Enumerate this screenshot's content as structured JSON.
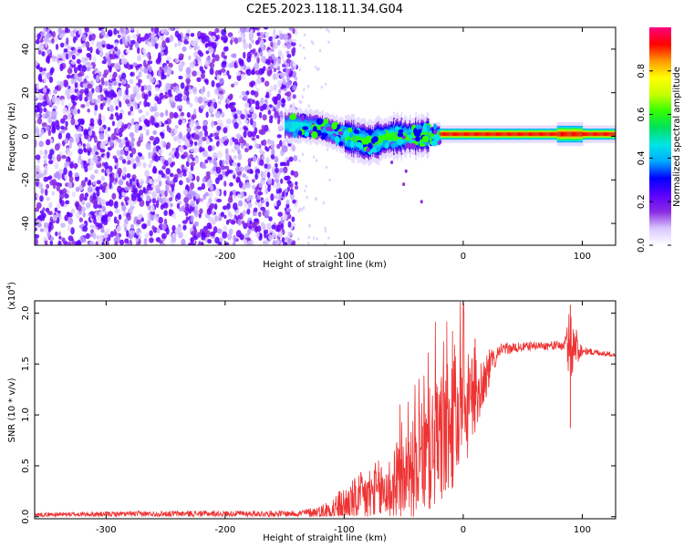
{
  "title": "C2E5.2023.118.11.34.G04",
  "chart_data": [
    {
      "type": "heatmap",
      "title": "C2E5.2023.118.11.34.G04",
      "xlabel": "Height of straight line (km)",
      "ylabel": "Frequency (Hz)",
      "xlim": [
        -360,
        128
      ],
      "ylim": [
        -50,
        50
      ],
      "x_ticks": [
        -300,
        -200,
        -100,
        0,
        100
      ],
      "x_tick_labels": [
        "-300",
        "-200",
        "-100",
        "0",
        "100"
      ],
      "y_ticks": [
        -40,
        -20,
        0,
        20,
        40
      ],
      "y_tick_labels": [
        "-40",
        "-20",
        "0",
        "20",
        "40"
      ],
      "noise_region_km": [
        -360,
        -140
      ],
      "signal_centerline": [
        {
          "x": -140,
          "f": 5
        },
        {
          "x": -120,
          "f": 4
        },
        {
          "x": -100,
          "f": 0
        },
        {
          "x": -80,
          "f": -3
        },
        {
          "x": -60,
          "f": 0
        },
        {
          "x": -40,
          "f": 0
        },
        {
          "x": -20,
          "f": 1
        },
        {
          "x": 0,
          "f": 1
        },
        {
          "x": 50,
          "f": 1
        },
        {
          "x": 100,
          "f": 1
        },
        {
          "x": 128,
          "f": 1
        }
      ],
      "colorbar": {
        "label": "Normalized spectral amplitude",
        "range": [
          0,
          1
        ],
        "ticks": [
          0.0,
          0.2,
          0.4,
          0.6,
          0.8
        ],
        "tick_labels": [
          "0.0",
          "0.2",
          "0.4",
          "0.6",
          "0.8"
        ],
        "colors": [
          "#ffffff",
          "#d9c8ff",
          "#8a2be2",
          "#5a00ff",
          "#0000ff",
          "#00aaff",
          "#00e5e5",
          "#00e060",
          "#30ff00",
          "#c8ff00",
          "#ffff00",
          "#ff9900",
          "#ff0000",
          "#ff0080"
        ]
      }
    },
    {
      "type": "line",
      "xlabel": "Height of straight line (km)",
      "ylabel": "SNR (10 * v/v)",
      "y_multiplier": "(x10",
      "y_multiplier_exp": "4",
      "y_multiplier_close": ")",
      "xlim": [
        -360,
        128
      ],
      "ylim": [
        -0.02,
        2.12
      ],
      "x_ticks": [
        -300,
        -200,
        -100,
        0,
        100
      ],
      "x_tick_labels": [
        "-300",
        "-200",
        "-100",
        "0",
        "100"
      ],
      "y_ticks": [
        0.0,
        0.5,
        1.0,
        1.5,
        2.0
      ],
      "y_tick_labels": [
        "0.0",
        "0.5",
        "1.0",
        "1.5",
        "2.0"
      ],
      "color": "#ee3333",
      "envelope": [
        {
          "x": -360,
          "base": 0.02,
          "amp": 0.02
        },
        {
          "x": -240,
          "base": 0.03,
          "amp": 0.03
        },
        {
          "x": -140,
          "base": 0.03,
          "amp": 0.03
        },
        {
          "x": -120,
          "base": 0.05,
          "amp": 0.06
        },
        {
          "x": -100,
          "base": 0.1,
          "amp": 0.2
        },
        {
          "x": -80,
          "base": 0.2,
          "amp": 0.3
        },
        {
          "x": -60,
          "base": 0.28,
          "amp": 0.35
        },
        {
          "x": -40,
          "base": 0.5,
          "amp": 0.5
        },
        {
          "x": -20,
          "base": 0.75,
          "amp": 0.7
        },
        {
          "x": 0,
          "base": 1.0,
          "amp": 0.6
        },
        {
          "x": 15,
          "base": 1.3,
          "amp": 0.3
        },
        {
          "x": 30,
          "base": 1.64,
          "amp": 0.06
        },
        {
          "x": 60,
          "base": 1.68,
          "amp": 0.04
        },
        {
          "x": 85,
          "base": 1.68,
          "amp": 0.05
        },
        {
          "x": 90,
          "base": 1.7,
          "amp": 0.4
        },
        {
          "x": 100,
          "base": 1.63,
          "amp": 0.04
        },
        {
          "x": 128,
          "base": 1.59,
          "amp": 0.02
        }
      ],
      "features": [
        {
          "x": 90,
          "y": 2.08,
          "label": "peak"
        },
        {
          "x": 90,
          "y": 0.87,
          "label": "dip"
        },
        {
          "x": 10,
          "y": 1.75,
          "label": "spike"
        }
      ]
    }
  ]
}
